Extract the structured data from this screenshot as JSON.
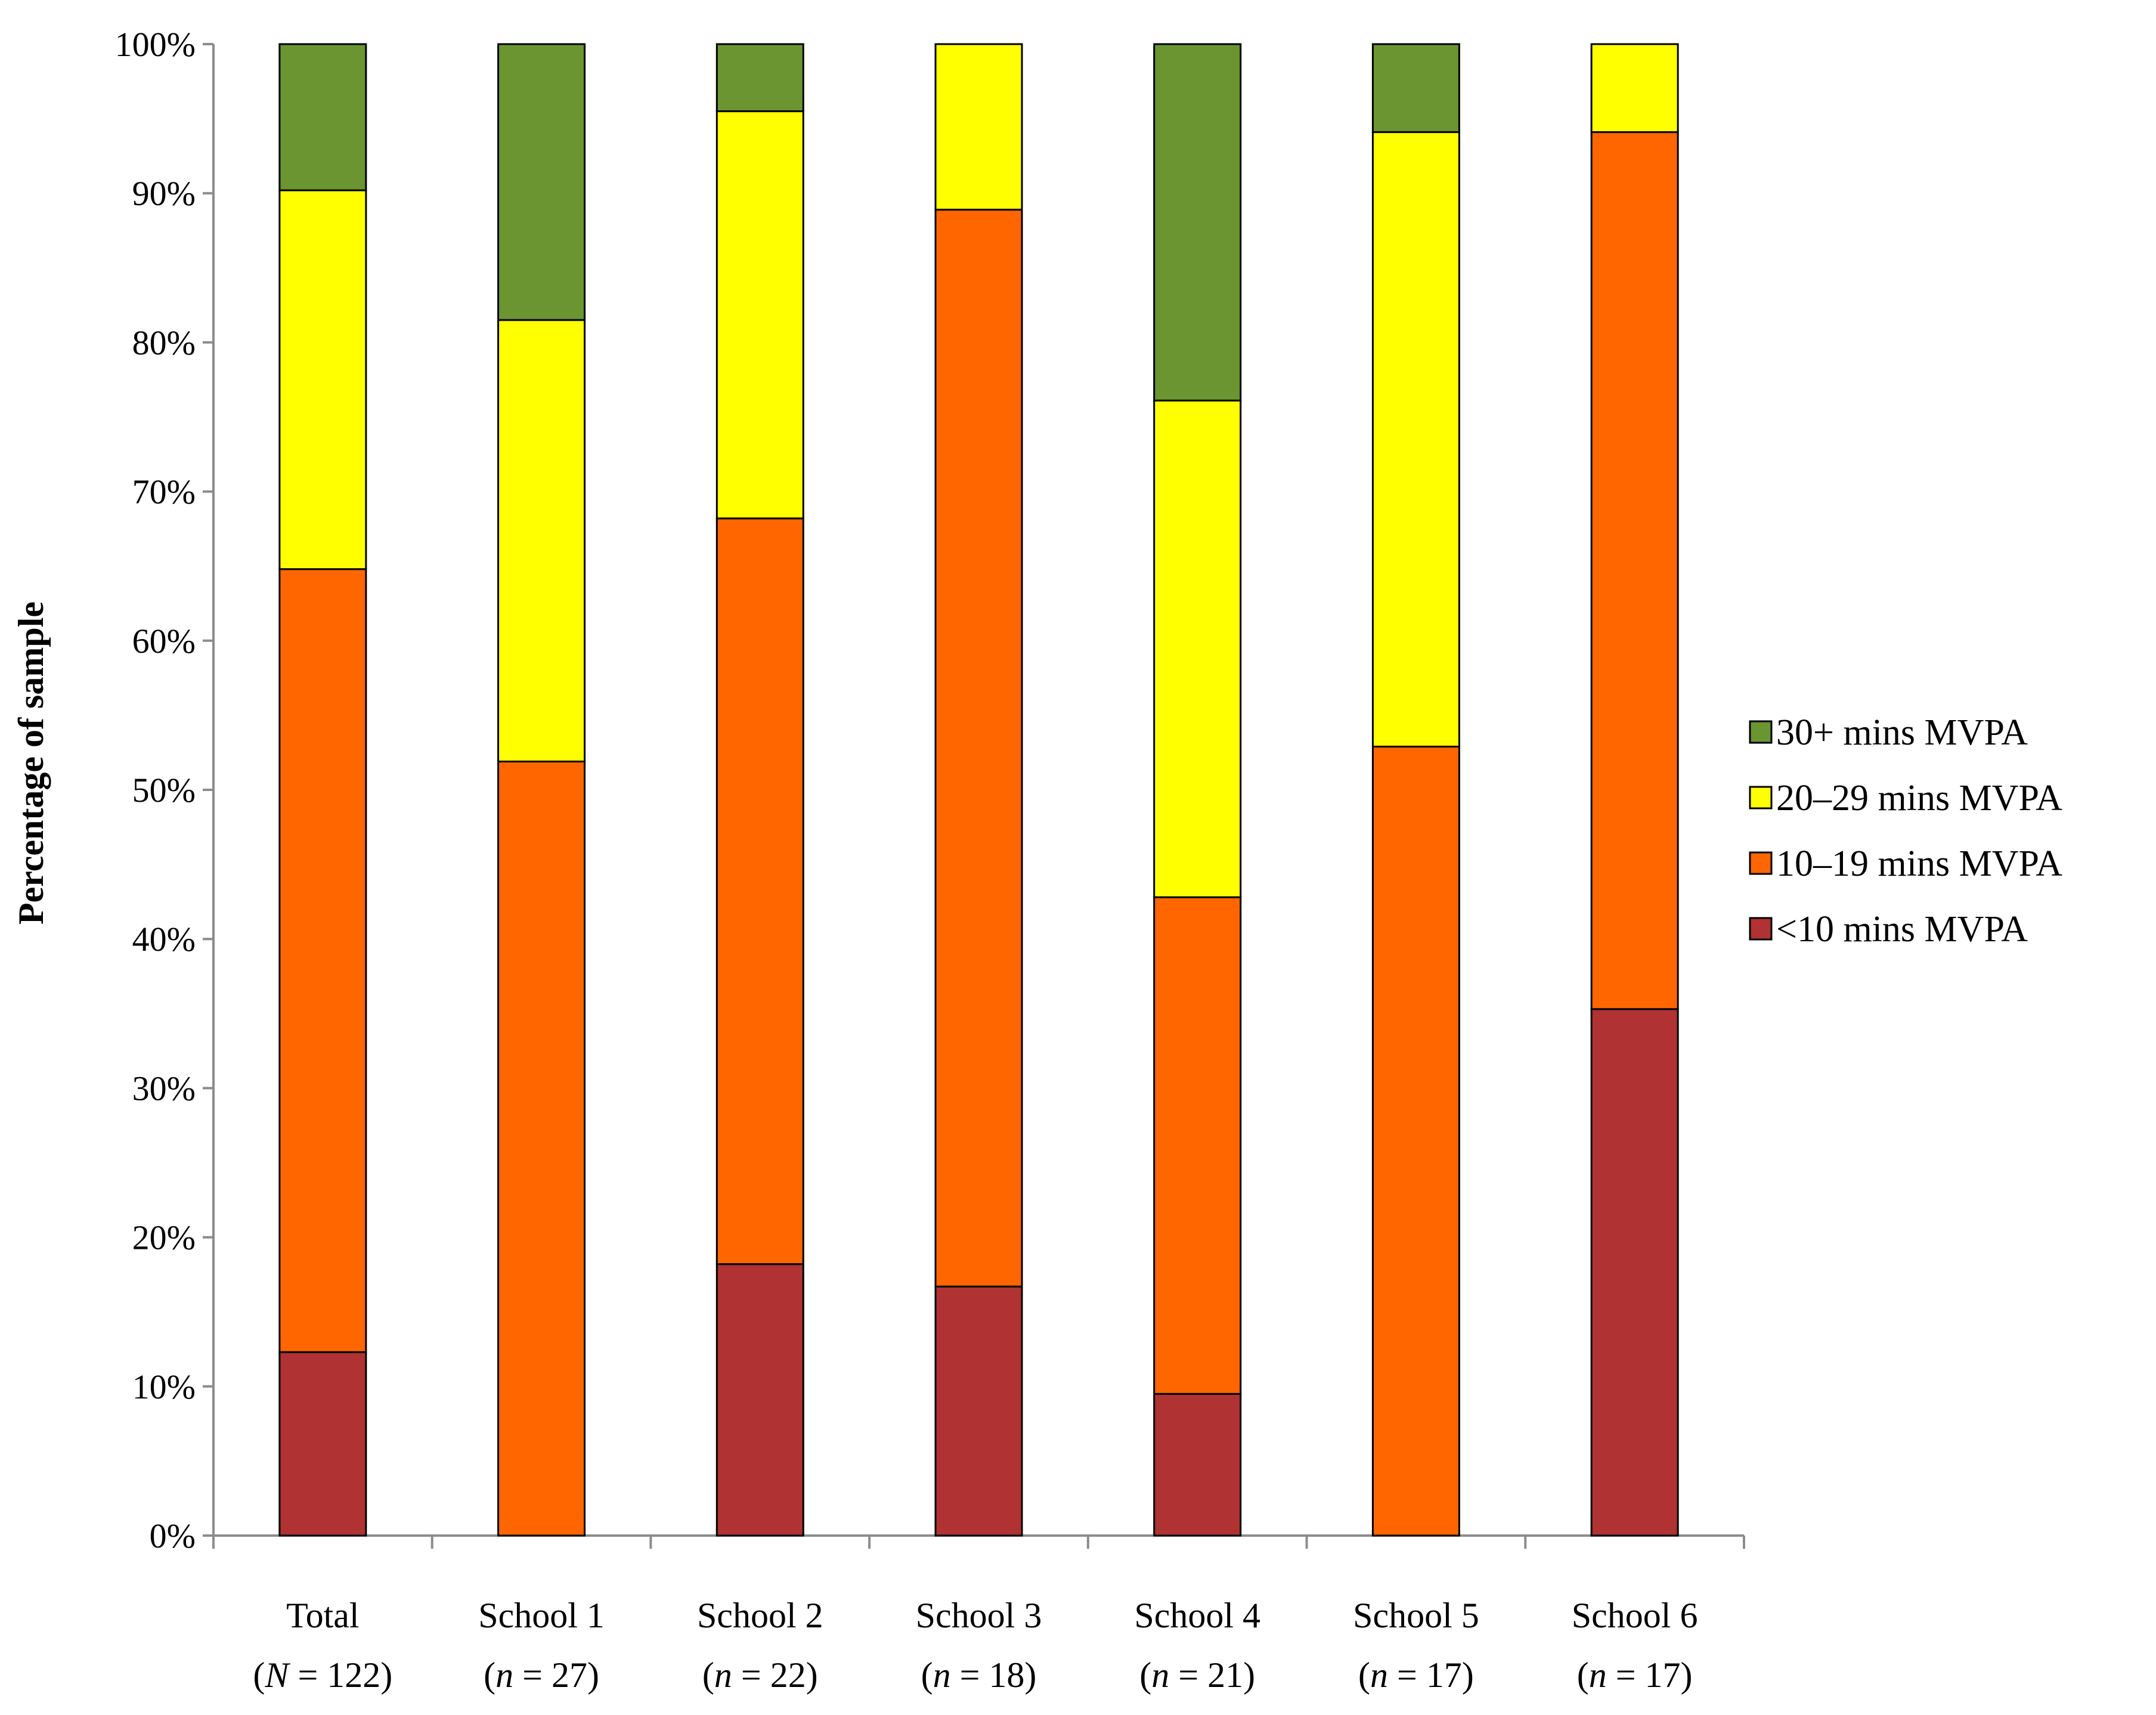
{
  "chart_data": {
    "type": "bar",
    "stacked": true,
    "title": "",
    "xlabel": "",
    "ylabel": "Percentage of sample",
    "ylim": [
      0,
      100
    ],
    "yticks": [
      "0%",
      "10%",
      "20%",
      "30%",
      "40%",
      "50%",
      "60%",
      "70%",
      "80%",
      "90%",
      "100%"
    ],
    "categories": [
      {
        "name": "Total",
        "sample_prefix": "(",
        "sample_var": "N",
        "sample_suffix": " = 122)"
      },
      {
        "name": "School 1",
        "sample_prefix": "(",
        "sample_var": "n",
        "sample_suffix": " = 27)"
      },
      {
        "name": "School 2",
        "sample_prefix": "(",
        "sample_var": "n",
        "sample_suffix": " = 22)"
      },
      {
        "name": "School 3",
        "sample_prefix": "(",
        "sample_var": "n",
        "sample_suffix": " = 18)"
      },
      {
        "name": "School 4",
        "sample_prefix": "(",
        "sample_var": "n",
        "sample_suffix": " = 21)"
      },
      {
        "name": "School 5",
        "sample_prefix": "(",
        "sample_var": "n",
        "sample_suffix": " = 17)"
      },
      {
        "name": "School 6",
        "sample_prefix": "(",
        "sample_var": "n",
        "sample_suffix": " = 17)"
      }
    ],
    "series": [
      {
        "name": "<10 mins MVPA",
        "color": "#B03232",
        "values": [
          12.3,
          0,
          18.2,
          16.7,
          9.5,
          0,
          35.3
        ]
      },
      {
        "name": "10–19 mins MVPA",
        "color": "#FF6600",
        "values": [
          52.5,
          51.9,
          50.0,
          72.2,
          33.3,
          52.9,
          58.8
        ]
      },
      {
        "name": "20–29 mins MVPA",
        "color": "#FFFF00",
        "values": [
          25.4,
          29.6,
          27.3,
          11.1,
          33.3,
          41.2,
          5.9
        ]
      },
      {
        "name": "30+ mins MVPA",
        "color": "#6A9530",
        "values": [
          9.8,
          18.5,
          4.5,
          0,
          23.9,
          5.9,
          0
        ]
      }
    ],
    "legend": {
      "position": "right",
      "order": [
        "30+ mins MVPA",
        "20–29 mins MVPA",
        "10–19 mins MVPA",
        "<10 mins MVPA"
      ]
    },
    "grid": false
  }
}
